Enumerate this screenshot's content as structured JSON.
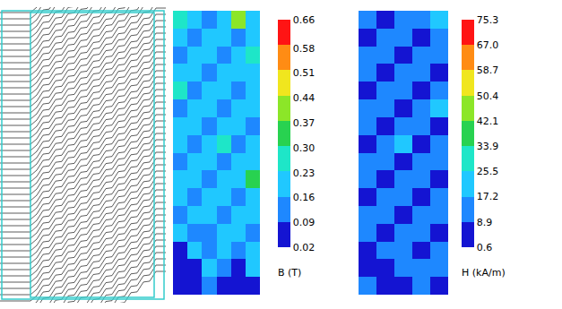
{
  "chart_data": [
    {
      "type": "flux_lines"
    },
    {
      "type": "heatmap",
      "tick_labels": false,
      "colorbar": {
        "title": "B (T)",
        "range": [
          0.02,
          0.66
        ],
        "ticks": [
          0.02,
          0.09,
          0.16,
          0.23,
          {
            "value": 0.3,
            "label": "0.30"
          },
          0.37,
          0.44,
          0.51,
          0.58,
          0.66
        ]
      },
      "cells": [
        [
          0.25,
          0.2,
          0.12,
          0.2,
          0.4,
          0.2
        ],
        [
          0.2,
          0.12,
          0.2,
          0.2,
          0.12,
          0.2
        ],
        [
          0.12,
          0.2,
          0.2,
          0.12,
          0.2,
          0.27
        ],
        [
          0.2,
          0.2,
          0.12,
          0.2,
          0.2,
          0.2
        ],
        [
          0.27,
          0.12,
          0.2,
          0.2,
          0.12,
          0.2
        ],
        [
          0.12,
          0.2,
          0.2,
          0.12,
          0.2,
          0.2
        ],
        [
          0.2,
          0.2,
          0.12,
          0.2,
          0.2,
          0.12
        ],
        [
          0.2,
          0.12,
          0.2,
          0.27,
          0.12,
          0.2
        ],
        [
          0.12,
          0.2,
          0.2,
          0.12,
          0.2,
          0.2
        ],
        [
          0.2,
          0.2,
          0.12,
          0.2,
          0.2,
          0.33
        ],
        [
          0.2,
          0.12,
          0.2,
          0.2,
          0.12,
          0.2
        ],
        [
          0.12,
          0.2,
          0.2,
          0.12,
          0.2,
          0.2
        ],
        [
          0.2,
          0.12,
          0.12,
          0.2,
          0.2,
          0.12
        ],
        [
          0.05,
          0.2,
          0.12,
          0.2,
          0.12,
          0.2
        ],
        [
          0.05,
          0.05,
          0.2,
          0.12,
          0.05,
          0.2
        ],
        [
          0.05,
          0.05,
          0.12,
          0.05,
          0.05,
          0.05
        ]
      ]
    },
    {
      "type": "heatmap",
      "tick_labels": false,
      "colorbar": {
        "title": "H (kA/m)",
        "range": [
          0.6,
          75.3
        ],
        "ticks": [
          0.6,
          8.9,
          17.2,
          25.5,
          33.9,
          42.1,
          50.4,
          58.7,
          {
            "value": 67,
            "label": "67.0"
          },
          75.3
        ]
      },
      "cells": [
        [
          12,
          5,
          12,
          12,
          20
        ],
        [
          5,
          12,
          12,
          5,
          12
        ],
        [
          12,
          12,
          5,
          12,
          12
        ],
        [
          12,
          5,
          12,
          12,
          5
        ],
        [
          5,
          12,
          12,
          5,
          12
        ],
        [
          12,
          12,
          5,
          12,
          20
        ],
        [
          12,
          5,
          12,
          12,
          5
        ],
        [
          5,
          12,
          20,
          5,
          12
        ],
        [
          12,
          12,
          5,
          12,
          12
        ],
        [
          12,
          5,
          12,
          12,
          5
        ],
        [
          5,
          12,
          12,
          5,
          12
        ],
        [
          12,
          12,
          5,
          12,
          12
        ],
        [
          12,
          5,
          12,
          12,
          5
        ],
        [
          5,
          12,
          12,
          5,
          12
        ],
        [
          5,
          5,
          12,
          12,
          12
        ],
        [
          12,
          5,
          5,
          12,
          5
        ]
      ]
    }
  ]
}
